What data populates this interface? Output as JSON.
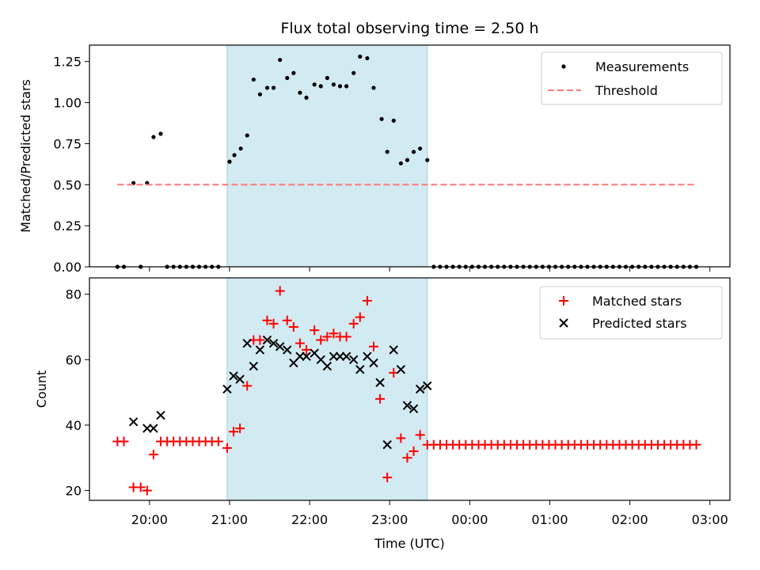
{
  "chart_data": {
    "title": "Flux total observing time = 2.50 h",
    "xlabel": "Time (UTC)",
    "x_unit": "hours (time of day, continuing past midnight)",
    "xlim": [
      19.25,
      27.25
    ],
    "xticks": [
      {
        "x": 20,
        "label": "20:00"
      },
      {
        "x": 21,
        "label": "21:00"
      },
      {
        "x": 22,
        "label": "22:00"
      },
      {
        "x": 23,
        "label": "23:00"
      },
      {
        "x": 24,
        "label": "00:00"
      },
      {
        "x": 25,
        "label": "01:00"
      },
      {
        "x": 26,
        "label": "02:00"
      },
      {
        "x": 27,
        "label": "03:00"
      }
    ],
    "observing_window": [
      20.97,
      23.47
    ],
    "colors": {
      "window": "#add8e6",
      "measurement": "#000000",
      "threshold": "#ff7777",
      "matched": "#ff0000",
      "predicted": "#000000"
    },
    "panels": [
      {
        "type": "scatter",
        "ylabel": "Matched/Predicted stars",
        "ylim": [
          0,
          1.35
        ],
        "yticks": [
          0,
          0.25,
          0.5,
          0.75,
          1.0,
          1.25
        ],
        "ytick_labels": [
          "0.00",
          "0.25",
          "0.50",
          "0.75",
          "1.00",
          "1.25"
        ],
        "legend_position": "upper right",
        "series": [
          {
            "name": "Measurements",
            "marker": "dot",
            "points": [
              [
                19.6,
                0
              ],
              [
                19.68,
                0
              ],
              [
                19.8,
                0.51
              ],
              [
                19.89,
                0
              ],
              [
                19.97,
                0.51
              ],
              [
                20.05,
                0.79
              ],
              [
                20.14,
                0.81
              ],
              [
                20.22,
                0
              ],
              [
                20.3,
                0
              ],
              [
                20.38,
                0
              ],
              [
                20.46,
                0
              ],
              [
                20.54,
                0
              ],
              [
                20.62,
                0
              ],
              [
                20.7,
                0
              ],
              [
                20.78,
                0
              ],
              [
                20.86,
                0
              ],
              [
                21.0,
                0.64
              ],
              [
                21.06,
                0.68
              ],
              [
                21.14,
                0.72
              ],
              [
                21.22,
                0.8
              ],
              [
                21.3,
                1.14
              ],
              [
                21.38,
                1.05
              ],
              [
                21.47,
                1.09
              ],
              [
                21.55,
                1.09
              ],
              [
                21.63,
                1.26
              ],
              [
                21.72,
                1.15
              ],
              [
                21.8,
                1.18
              ],
              [
                21.88,
                1.06
              ],
              [
                21.96,
                1.03
              ],
              [
                22.06,
                1.11
              ],
              [
                22.14,
                1.1
              ],
              [
                22.22,
                1.15
              ],
              [
                22.3,
                1.11
              ],
              [
                22.38,
                1.1
              ],
              [
                22.46,
                1.1
              ],
              [
                22.55,
                1.18
              ],
              [
                22.63,
                1.28
              ],
              [
                22.72,
                1.27
              ],
              [
                22.8,
                1.09
              ],
              [
                22.9,
                0.9
              ],
              [
                22.97,
                0.7
              ],
              [
                23.05,
                0.89
              ],
              [
                23.14,
                0.63
              ],
              [
                23.22,
                0.65
              ],
              [
                23.3,
                0.7
              ],
              [
                23.38,
                0.72
              ],
              [
                23.47,
                0.65
              ],
              [
                23.55,
                0
              ],
              [
                23.63,
                0
              ],
              [
                23.71,
                0
              ],
              [
                23.79,
                0
              ],
              [
                23.87,
                0
              ],
              [
                23.95,
                0
              ],
              [
                24.03,
                0
              ],
              [
                24.11,
                0
              ],
              [
                24.19,
                0
              ],
              [
                24.27,
                0
              ],
              [
                24.35,
                0
              ],
              [
                24.43,
                0
              ],
              [
                24.51,
                0
              ],
              [
                24.59,
                0
              ],
              [
                24.67,
                0
              ],
              [
                24.75,
                0
              ],
              [
                24.83,
                0
              ],
              [
                24.91,
                0
              ],
              [
                24.99,
                0
              ],
              [
                25.07,
                0
              ],
              [
                25.15,
                0
              ],
              [
                25.23,
                0
              ],
              [
                25.31,
                0
              ],
              [
                25.39,
                0
              ],
              [
                25.47,
                0
              ],
              [
                25.55,
                0
              ],
              [
                25.63,
                0
              ],
              [
                25.71,
                0
              ],
              [
                25.79,
                0
              ],
              [
                25.87,
                0
              ],
              [
                25.95,
                0
              ],
              [
                26.03,
                0
              ],
              [
                26.11,
                0
              ],
              [
                26.19,
                0
              ],
              [
                26.27,
                0
              ],
              [
                26.35,
                0
              ],
              [
                26.43,
                0
              ],
              [
                26.51,
                0
              ],
              [
                26.59,
                0
              ],
              [
                26.67,
                0
              ],
              [
                26.75,
                0
              ],
              [
                26.83,
                0
              ]
            ]
          },
          {
            "name": "Threshold",
            "marker": "dashed-line",
            "points": [
              [
                19.6,
                0.5
              ],
              [
                26.83,
                0.5
              ]
            ]
          }
        ]
      },
      {
        "type": "scatter",
        "ylabel": "Count",
        "ylim": [
          17,
          85
        ],
        "yticks": [
          20,
          40,
          60,
          80
        ],
        "ytick_labels": [
          "20",
          "40",
          "60",
          "80"
        ],
        "legend_position": "upper right",
        "series": [
          {
            "name": "Matched stars",
            "marker": "plus",
            "points": [
              [
                19.6,
                35
              ],
              [
                19.68,
                35
              ],
              [
                19.8,
                21
              ],
              [
                19.89,
                21
              ],
              [
                19.97,
                20
              ],
              [
                20.05,
                31
              ],
              [
                20.14,
                35
              ],
              [
                20.22,
                35
              ],
              [
                20.3,
                35
              ],
              [
                20.38,
                35
              ],
              [
                20.46,
                35
              ],
              [
                20.54,
                35
              ],
              [
                20.62,
                35
              ],
              [
                20.7,
                35
              ],
              [
                20.78,
                35
              ],
              [
                20.86,
                35
              ],
              [
                20.97,
                33
              ],
              [
                21.05,
                38
              ],
              [
                21.13,
                39
              ],
              [
                21.22,
                52
              ],
              [
                21.3,
                66
              ],
              [
                21.38,
                66
              ],
              [
                21.47,
                72
              ],
              [
                21.55,
                71
              ],
              [
                21.63,
                81
              ],
              [
                21.72,
                72
              ],
              [
                21.8,
                70
              ],
              [
                21.88,
                65
              ],
              [
                21.96,
                63
              ],
              [
                22.06,
                69
              ],
              [
                22.14,
                66
              ],
              [
                22.22,
                67
              ],
              [
                22.3,
                68
              ],
              [
                22.38,
                67
              ],
              [
                22.46,
                67
              ],
              [
                22.55,
                71
              ],
              [
                22.63,
                73
              ],
              [
                22.72,
                78
              ],
              [
                22.8,
                64
              ],
              [
                22.88,
                48
              ],
              [
                22.97,
                24
              ],
              [
                23.05,
                56
              ],
              [
                23.14,
                36
              ],
              [
                23.22,
                30
              ],
              [
                23.3,
                32
              ],
              [
                23.38,
                37
              ],
              [
                23.47,
                34
              ],
              [
                23.55,
                34
              ],
              [
                23.63,
                34
              ],
              [
                23.71,
                34
              ],
              [
                23.79,
                34
              ],
              [
                23.87,
                34
              ],
              [
                23.95,
                34
              ],
              [
                24.03,
                34
              ],
              [
                24.11,
                34
              ],
              [
                24.19,
                34
              ],
              [
                24.27,
                34
              ],
              [
                24.35,
                34
              ],
              [
                24.43,
                34
              ],
              [
                24.51,
                34
              ],
              [
                24.59,
                34
              ],
              [
                24.67,
                34
              ],
              [
                24.75,
                34
              ],
              [
                24.83,
                34
              ],
              [
                24.91,
                34
              ],
              [
                24.99,
                34
              ],
              [
                25.07,
                34
              ],
              [
                25.15,
                34
              ],
              [
                25.23,
                34
              ],
              [
                25.31,
                34
              ],
              [
                25.39,
                34
              ],
              [
                25.47,
                34
              ],
              [
                25.55,
                34
              ],
              [
                25.63,
                34
              ],
              [
                25.71,
                34
              ],
              [
                25.79,
                34
              ],
              [
                25.87,
                34
              ],
              [
                25.95,
                34
              ],
              [
                26.03,
                34
              ],
              [
                26.11,
                34
              ],
              [
                26.19,
                34
              ],
              [
                26.27,
                34
              ],
              [
                26.35,
                34
              ],
              [
                26.43,
                34
              ],
              [
                26.51,
                34
              ],
              [
                26.59,
                34
              ],
              [
                26.67,
                34
              ],
              [
                26.75,
                34
              ],
              [
                26.83,
                34
              ]
            ]
          },
          {
            "name": "Predicted stars",
            "marker": "x",
            "points": [
              [
                19.8,
                41
              ],
              [
                19.97,
                39
              ],
              [
                20.05,
                39
              ],
              [
                20.14,
                43
              ],
              [
                20.97,
                51
              ],
              [
                21.05,
                55
              ],
              [
                21.13,
                54
              ],
              [
                21.22,
                65
              ],
              [
                21.3,
                58
              ],
              [
                21.38,
                63
              ],
              [
                21.47,
                66
              ],
              [
                21.55,
                65
              ],
              [
                21.63,
                64
              ],
              [
                21.72,
                63
              ],
              [
                21.8,
                59
              ],
              [
                21.88,
                61
              ],
              [
                21.96,
                61
              ],
              [
                22.06,
                62
              ],
              [
                22.14,
                60
              ],
              [
                22.22,
                58
              ],
              [
                22.3,
                61
              ],
              [
                22.38,
                61
              ],
              [
                22.46,
                61
              ],
              [
                22.55,
                60
              ],
              [
                22.63,
                57
              ],
              [
                22.72,
                61
              ],
              [
                22.8,
                59
              ],
              [
                22.88,
                53
              ],
              [
                22.97,
                34
              ],
              [
                23.05,
                63
              ],
              [
                23.14,
                57
              ],
              [
                23.22,
                46
              ],
              [
                23.3,
                45
              ],
              [
                23.38,
                51
              ],
              [
                23.47,
                52
              ]
            ]
          }
        ]
      }
    ]
  }
}
